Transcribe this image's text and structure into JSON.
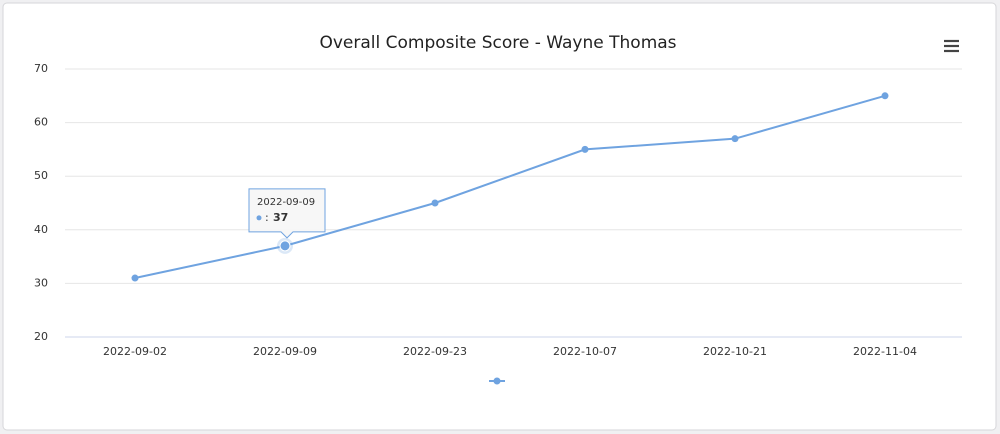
{
  "chart_data": {
    "type": "line",
    "title": "Overall Composite Score - Wayne Thomas",
    "categories": [
      "2022-09-02",
      "2022-09-09",
      "2022-09-23",
      "2022-10-07",
      "2022-10-21",
      "2022-11-04"
    ],
    "series": [
      {
        "color": "#6fa3e0",
        "values": [
          31,
          37,
          45,
          55,
          57,
          65
        ]
      }
    ],
    "ylim": [
      20,
      70
    ],
    "yticks": [
      20,
      30,
      40,
      50,
      60,
      70
    ],
    "grid": true,
    "tooltip": {
      "x": "2022-09-09",
      "separator": ":",
      "value": 37
    }
  }
}
